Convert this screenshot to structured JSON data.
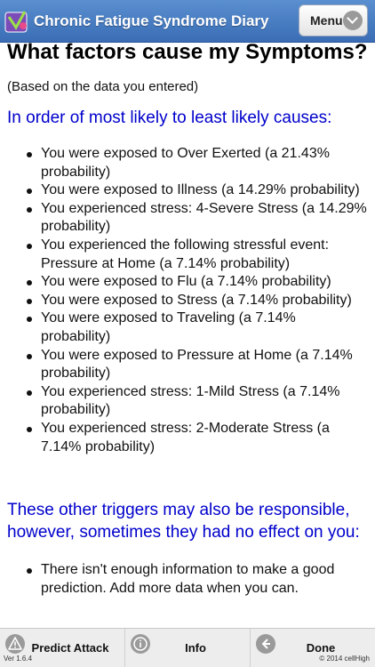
{
  "header": {
    "title": "Chronic Fatigue Syndrome Diary",
    "menu_label": "Menu"
  },
  "main": {
    "title": "What factors cause my Symptoms?",
    "subtitle": "(Based on the data you entered)",
    "causes_heading": "In order of most likely to least likely causes:",
    "causes": [
      "You were exposed to Over Exerted (a 21.43% probability)",
      "You were exposed to Illness (a 14.29% probability)",
      "You experienced stress: 4-Severe Stress (a 14.29% probability)",
      "You experienced the following stressful event: Pressure at Home (a 7.14% probability)",
      "You were exposed to Flu (a 7.14% probability)",
      "You were exposed to Stress (a 7.14% probability)",
      "You were exposed to Traveling (a 7.14% probability)",
      "You were exposed to Pressure at Home (a 7.14% probability)",
      "You experienced stress: 1-Mild Stress (a 7.14% probability)",
      "You experienced stress: 2-Moderate Stress (a 7.14% probability)"
    ],
    "other_heading": "These other triggers may also be responsible, however, sometimes they had no effect on you:",
    "other_items": [
      "There isn't enough information to make a good prediction. Add more data when you can."
    ]
  },
  "footer": {
    "predict_label": "Predict Attack",
    "info_label": "Info",
    "done_label": "Done",
    "version": "Ver 1.6.4",
    "copyright": "© 2014 cellHigh"
  },
  "colors": {
    "header_blue": "#3a6db5",
    "heading_blue": "#0000cc"
  }
}
